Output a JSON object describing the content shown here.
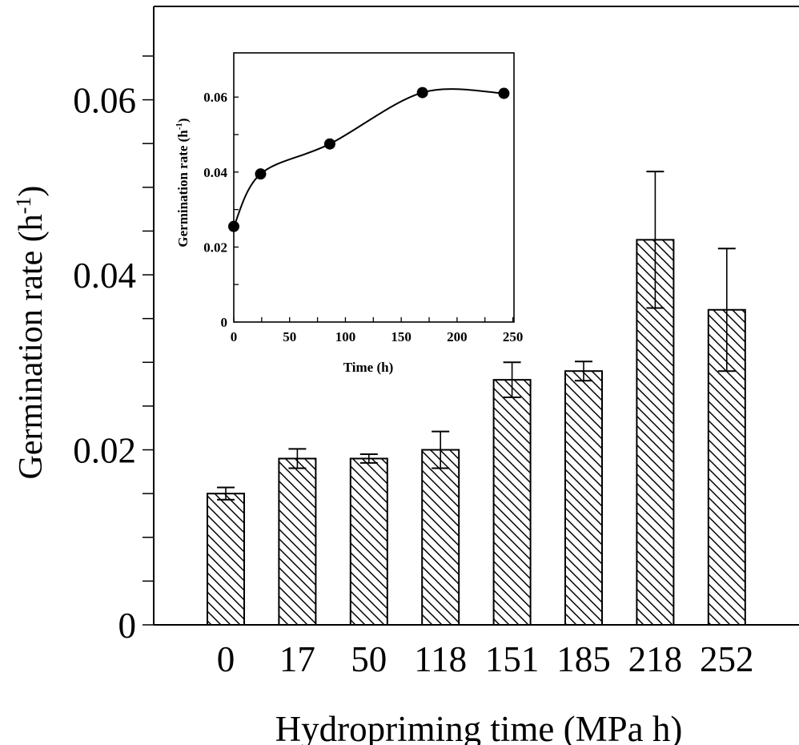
{
  "chart_data": [
    {
      "type": "bar",
      "title": "",
      "xlabel": "Hydropriming time (MPa h)",
      "ylabel": "Germination rate (h",
      "ylabel_sup": "-1",
      "ylabel_close": ")",
      "categories": [
        "0",
        "17",
        "50",
        "118",
        "151",
        "185",
        "218",
        "252"
      ],
      "values": [
        0.015,
        0.019,
        0.019,
        0.02,
        0.028,
        0.029,
        0.044,
        0.036
      ],
      "errors": [
        0.0007,
        0.0011,
        0.0005,
        0.0021,
        0.002,
        0.0011,
        0.0078,
        0.007
      ],
      "ylim": [
        0,
        0.07
      ],
      "ytick_values": [
        0,
        0.02,
        0.04,
        0.06
      ],
      "ytick_labels": [
        "0",
        "0.02",
        "0.04",
        "0.06"
      ],
      "pattern": "diagonal-hatch",
      "grid": false
    },
    {
      "type": "line",
      "title": "",
      "xlabel": "Time (h)",
      "ylabel": "Germination rate (h",
      "ylabel_sup": "-1",
      "ylabel_close": ")",
      "x": [
        0,
        24,
        86,
        169,
        242
      ],
      "y": [
        0.0255,
        0.0395,
        0.0475,
        0.0612,
        0.061
      ],
      "xlim": [
        0,
        250
      ],
      "ylim": [
        0,
        0.07
      ],
      "xtick_values": [
        0,
        50,
        100,
        150,
        200,
        250
      ],
      "xtick_labels": [
        "0",
        "50",
        "100",
        "150",
        "200",
        "250"
      ],
      "ytick_values": [
        0,
        0.02,
        0.04,
        0.06
      ],
      "ytick_labels": [
        "0",
        "0.02",
        "0.04",
        "0.06"
      ],
      "marker": "filled-circle",
      "smooth": true,
      "grid": false
    }
  ]
}
